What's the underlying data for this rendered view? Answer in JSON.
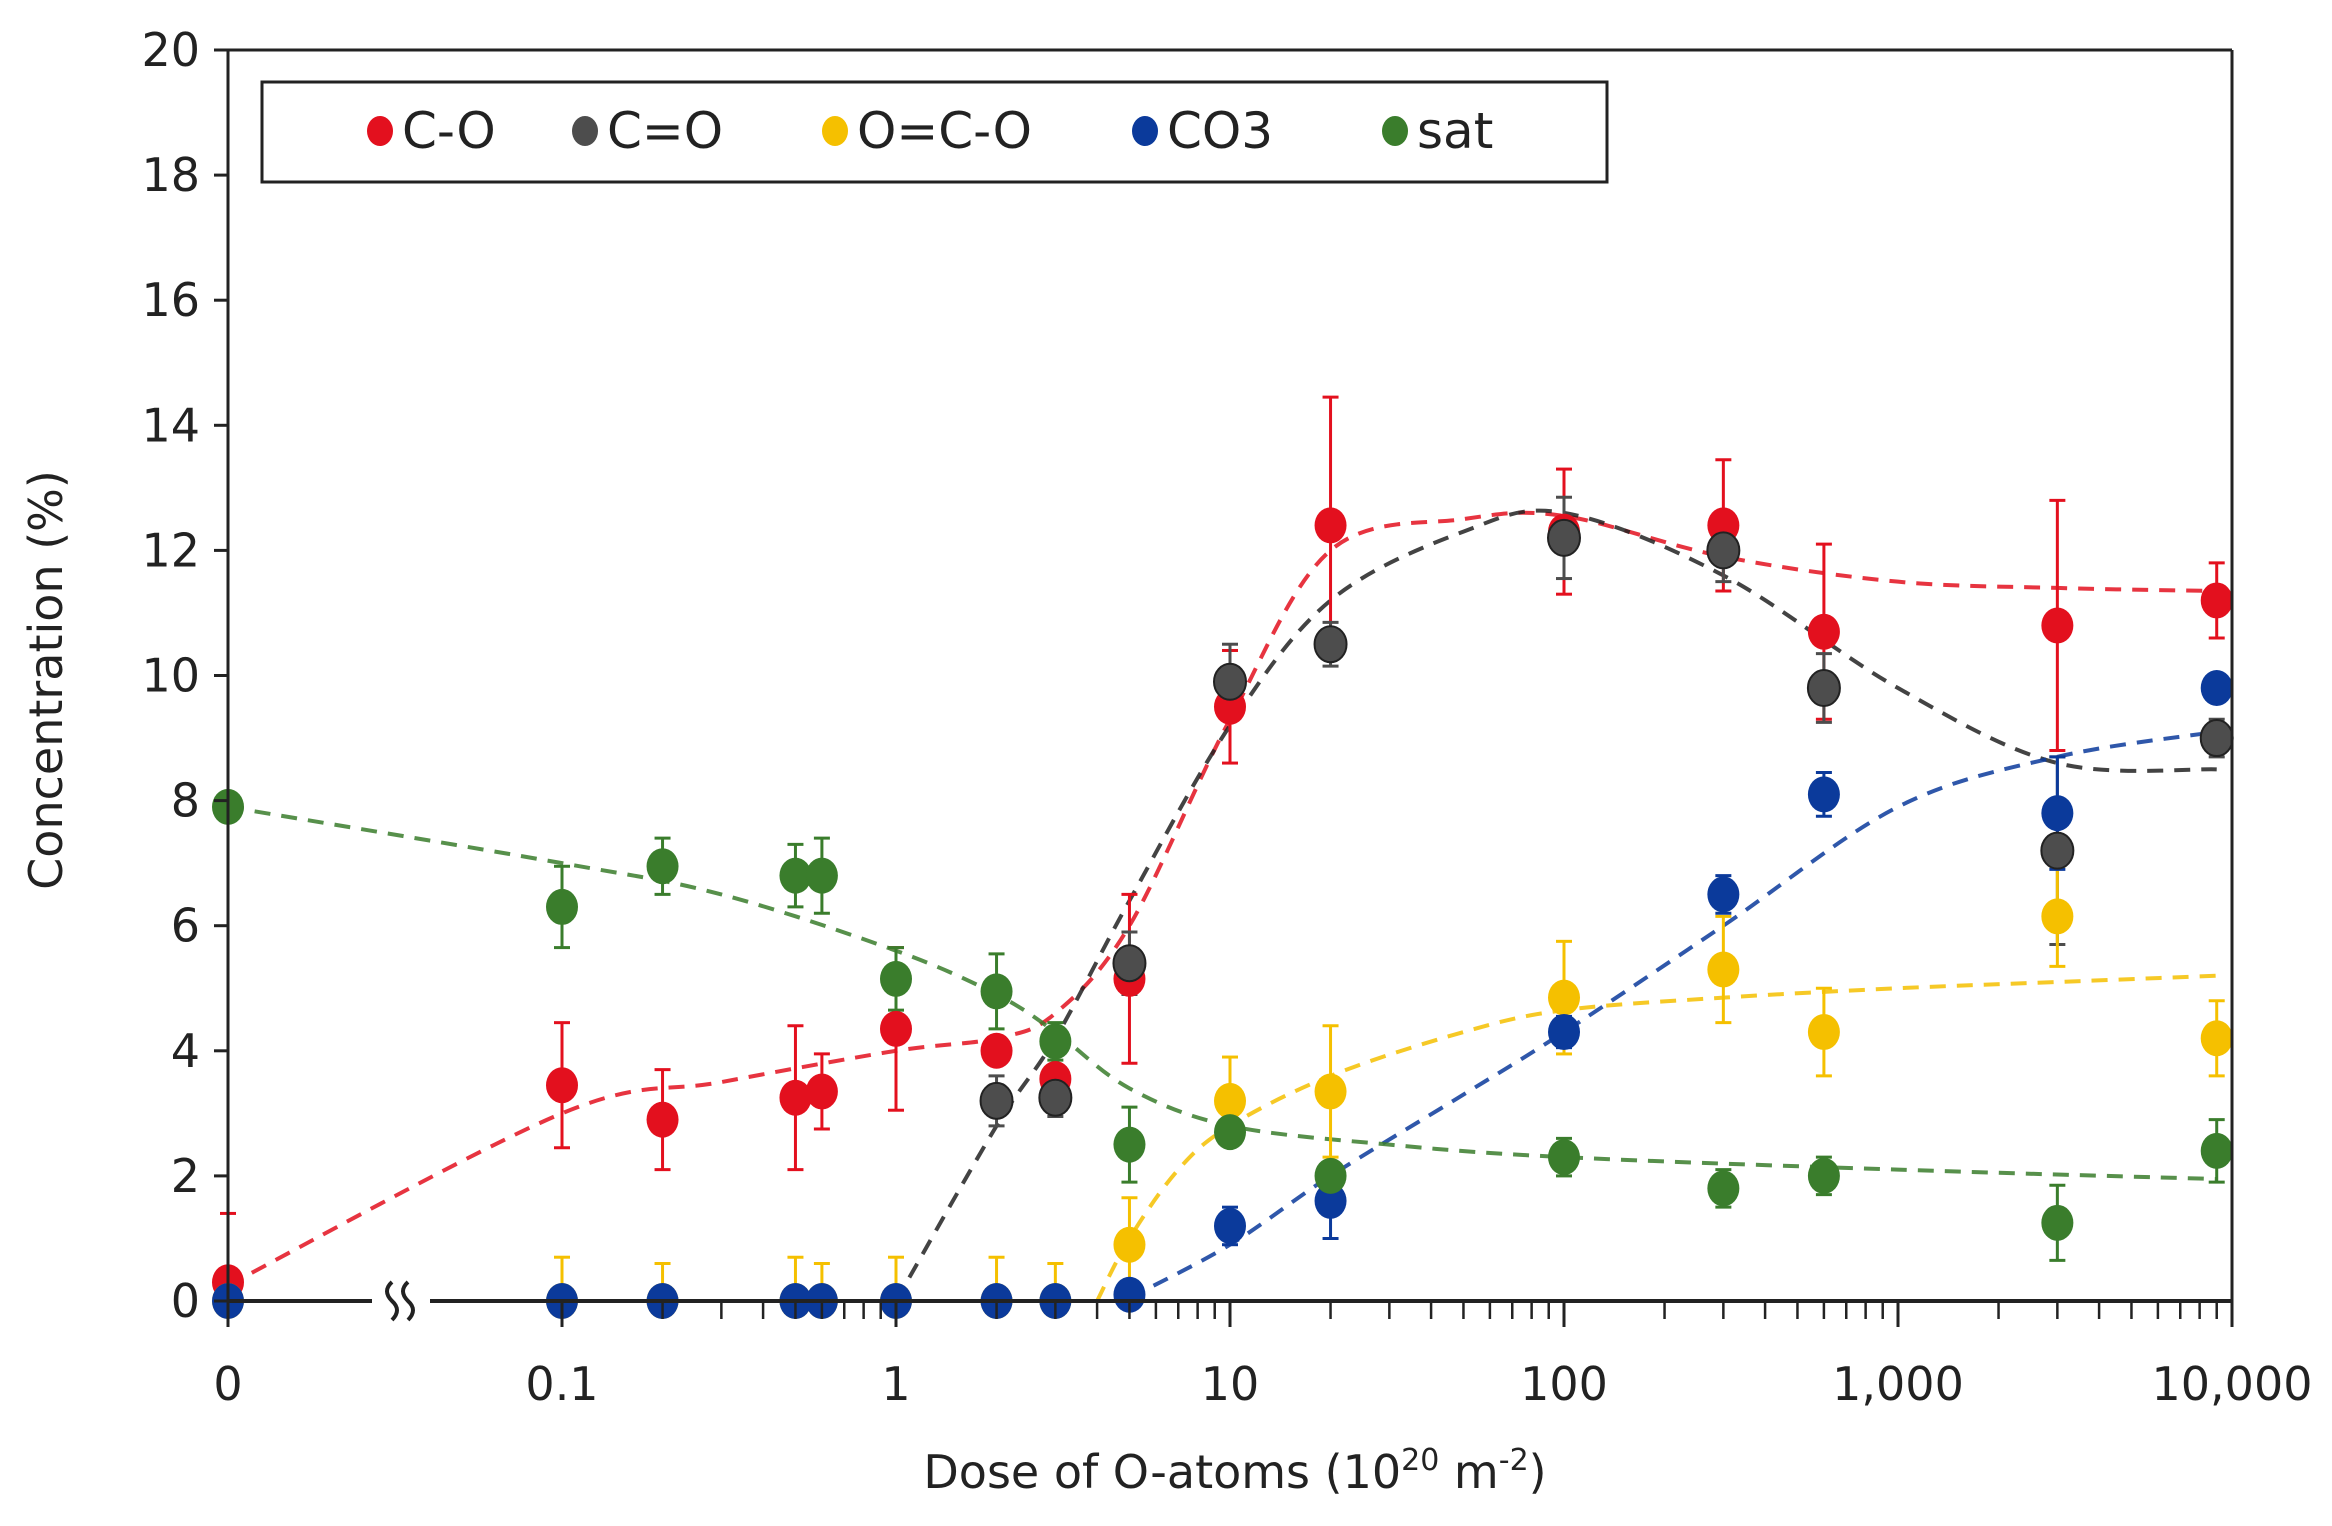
{
  "chart_data": {
    "type": "scatter",
    "title": "",
    "xlabel": "Dose of O-atoms (10",
    "xlabel_sup1": "20",
    "xlabel_mid": " m",
    "xlabel_sup2": "-2",
    "xlabel_end": ")",
    "ylabel": "Concentration (%)",
    "x_scale": "log with broken axis at 0",
    "xlim": [
      0.1,
      10000
    ],
    "ylim": [
      0,
      20
    ],
    "y_ticks": [
      0,
      2,
      4,
      6,
      8,
      10,
      12,
      14,
      16,
      18,
      20
    ],
    "x_ticks": [
      {
        "value": 0,
        "label": "0"
      },
      {
        "value": 0.1,
        "label": "0.1"
      },
      {
        "value": 1,
        "label": "1"
      },
      {
        "value": 10,
        "label": "10"
      },
      {
        "value": 100,
        "label": "100"
      },
      {
        "value": 1000,
        "label": "1,000"
      },
      {
        "value": 10000,
        "label": "10,000"
      }
    ],
    "grid": false,
    "legend_position": "top-left",
    "fit_lines": "dashed",
    "series": [
      {
        "name": "C-O",
        "color": "#e3101e",
        "x": [
          0,
          0.1,
          0.2,
          0.5,
          0.6,
          1,
          2,
          3,
          5,
          10,
          20,
          100,
          300,
          600,
          3000,
          9000
        ],
        "y": [
          0.3,
          3.45,
          2.9,
          3.25,
          3.35,
          4.35,
          4.0,
          3.55,
          5.15,
          9.5,
          12.4,
          12.3,
          12.4,
          10.7,
          10.8,
          11.2
        ],
        "err": [
          1.1,
          1.0,
          0.8,
          1.15,
          0.6,
          1.3,
          0.0,
          0.4,
          1.35,
          0.9,
          2.05,
          1.0,
          1.05,
          1.4,
          2.0,
          0.6
        ],
        "fit": [
          [
            0,
            0.25
          ],
          [
            0.1,
            3.0
          ],
          [
            0.3,
            3.5
          ],
          [
            1,
            4.0
          ],
          [
            2,
            4.2
          ],
          [
            3,
            4.6
          ],
          [
            5,
            6.0
          ],
          [
            10,
            9.3
          ],
          [
            20,
            12.0
          ],
          [
            50,
            12.5
          ],
          [
            100,
            12.55
          ],
          [
            300,
            11.9
          ],
          [
            1000,
            11.5
          ],
          [
            3000,
            11.4
          ],
          [
            9000,
            11.35
          ]
        ]
      },
      {
        "name": "C=O",
        "color": "#4d4d4d",
        "x": [
          2,
          3,
          5,
          10,
          20,
          100,
          300,
          600,
          3000,
          9000
        ],
        "y": [
          3.2,
          3.25,
          5.4,
          9.9,
          10.5,
          12.2,
          12.0,
          9.8,
          7.2,
          9.0
        ],
        "err": [
          0.4,
          0.3,
          0.5,
          0.6,
          0.35,
          0.65,
          0.5,
          0.55,
          1.5,
          0.3
        ],
        "fit": [
          [
            1,
            0.0
          ],
          [
            2,
            2.8
          ],
          [
            3,
            4.2
          ],
          [
            5,
            6.4
          ],
          [
            10,
            9.2
          ],
          [
            20,
            11.2
          ],
          [
            50,
            12.3
          ],
          [
            100,
            12.6
          ],
          [
            300,
            11.6
          ],
          [
            1000,
            9.8
          ],
          [
            3000,
            8.6
          ],
          [
            9000,
            8.5
          ]
        ]
      },
      {
        "name": "O=C-O",
        "color": "#f5c000",
        "x": [
          0,
          0.1,
          0.2,
          0.5,
          0.6,
          1,
          2,
          3,
          5,
          10,
          20,
          100,
          300,
          600,
          3000,
          9000
        ],
        "y": [
          0,
          0,
          0,
          0,
          0,
          0,
          0,
          0,
          0.9,
          3.2,
          3.35,
          4.85,
          5.3,
          4.3,
          6.15,
          4.2
        ],
        "err": [
          0.5,
          0.7,
          0.6,
          0.7,
          0.6,
          0.7,
          0.7,
          0.6,
          0.75,
          0.7,
          1.05,
          0.9,
          0.85,
          0.7,
          0.8,
          0.6
        ],
        "fit": [
          [
            4,
            0.0
          ],
          [
            5,
            1.0
          ],
          [
            7,
            2.1
          ],
          [
            10,
            2.8
          ],
          [
            20,
            3.6
          ],
          [
            50,
            4.3
          ],
          [
            100,
            4.65
          ],
          [
            300,
            4.85
          ],
          [
            1000,
            5.0
          ],
          [
            3000,
            5.1
          ],
          [
            9000,
            5.2
          ]
        ]
      },
      {
        "name": "CO3",
        "color": "#0b3a9b",
        "x": [
          0,
          0.1,
          0.2,
          0.5,
          0.6,
          1,
          2,
          3,
          5,
          10,
          20,
          100,
          300,
          600,
          3000,
          9000
        ],
        "y": [
          0,
          0,
          0,
          0,
          0,
          0,
          0,
          0,
          0.1,
          1.2,
          1.6,
          4.3,
          6.5,
          8.1,
          7.8,
          9.8
        ],
        "err": [
          0,
          0,
          0,
          0,
          0,
          0,
          0,
          0,
          0.2,
          0.3,
          0.6,
          0.25,
          0.3,
          0.35,
          0.9,
          0.2
        ],
        "fit": [
          [
            5,
            0.05
          ],
          [
            10,
            0.9
          ],
          [
            20,
            2.0
          ],
          [
            50,
            3.3
          ],
          [
            100,
            4.3
          ],
          [
            300,
            6.0
          ],
          [
            1000,
            7.9
          ],
          [
            3000,
            8.7
          ],
          [
            9000,
            9.1
          ]
        ]
      },
      {
        "name": "sat",
        "color": "#3a7d2c",
        "x": [
          0,
          0.1,
          0.2,
          0.5,
          0.6,
          1,
          2,
          3,
          5,
          10,
          20,
          100,
          300,
          600,
          3000,
          9000
        ],
        "y": [
          7.9,
          6.3,
          6.95,
          6.8,
          6.8,
          5.15,
          4.95,
          4.15,
          2.5,
          2.7,
          2.0,
          2.3,
          1.8,
          2.0,
          1.25,
          2.4
        ],
        "err": [
          0.1,
          0.65,
          0.45,
          0.5,
          0.6,
          0.5,
          0.6,
          0.3,
          0.6,
          0.2,
          0.2,
          0.3,
          0.3,
          0.3,
          0.6,
          0.5
        ],
        "fit": [
          [
            0,
            7.9
          ],
          [
            0.1,
            7.0
          ],
          [
            0.3,
            6.5
          ],
          [
            1,
            5.6
          ],
          [
            2,
            4.9
          ],
          [
            3,
            4.3
          ],
          [
            5,
            3.4
          ],
          [
            10,
            2.8
          ],
          [
            30,
            2.5
          ],
          [
            100,
            2.3
          ],
          [
            1000,
            2.1
          ],
          [
            9000,
            1.95
          ]
        ]
      }
    ]
  }
}
